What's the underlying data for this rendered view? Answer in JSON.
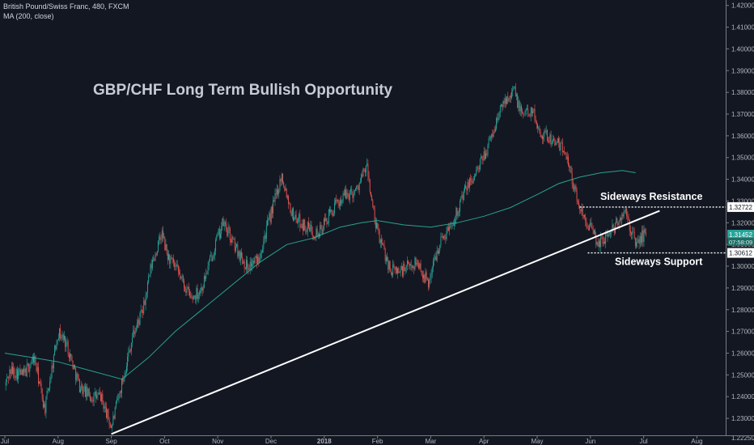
{
  "legend": {
    "symbol_line": "British Pound/Swiss Franc, 480, FXCM",
    "indicator_line": "MA (200, close)"
  },
  "chart_data": {
    "type": "candlestick",
    "title": "GBP/CHF Long Term Bullish Opportunity",
    "y_axis": {
      "range": [
        1.2222,
        1.4225
      ],
      "ticks": [
        "1.23000",
        "1.24000",
        "1.25000",
        "1.26000",
        "1.27000",
        "1.28000",
        "1.29000",
        "1.30000",
        "1.31000",
        "1.32000",
        "1.33000",
        "1.34000",
        "1.35000",
        "1.36000",
        "1.37000",
        "1.38000",
        "1.39000",
        "1.40000",
        "1.41000",
        "1.42000"
      ],
      "bottom_label": "1.22250"
    },
    "x_axis": {
      "labels": [
        "Jul",
        "Aug",
        "Sep",
        "Oct",
        "Nov",
        "Dec",
        "2018",
        "Feb",
        "Mar",
        "Apr",
        "May",
        "Jun",
        "Jul",
        "Aug"
      ],
      "positions": [
        0,
        1,
        2,
        3,
        4,
        5,
        6,
        7,
        8,
        9,
        10,
        11,
        12,
        13
      ]
    },
    "price_path": [
      [
        0.0,
        1.245
      ],
      [
        0.1,
        1.252
      ],
      [
        0.35,
        1.25
      ],
      [
        0.55,
        1.258
      ],
      [
        0.75,
        1.234
      ],
      [
        1.0,
        1.27
      ],
      [
        1.15,
        1.265
      ],
      [
        1.4,
        1.245
      ],
      [
        1.6,
        1.24
      ],
      [
        1.8,
        1.24
      ],
      [
        2.0,
        1.226
      ],
      [
        2.15,
        1.241
      ],
      [
        2.4,
        1.268
      ],
      [
        2.6,
        1.28
      ],
      [
        2.75,
        1.3
      ],
      [
        2.95,
        1.315
      ],
      [
        3.05,
        1.305
      ],
      [
        3.3,
        1.295
      ],
      [
        3.5,
        1.285
      ],
      [
        3.7,
        1.29
      ],
      [
        3.95,
        1.31
      ],
      [
        4.1,
        1.32
      ],
      [
        4.35,
        1.308
      ],
      [
        4.55,
        1.3
      ],
      [
        4.75,
        1.303
      ],
      [
        4.95,
        1.32
      ],
      [
        5.2,
        1.342
      ],
      [
        5.4,
        1.324
      ],
      [
        5.65,
        1.318
      ],
      [
        5.9,
        1.315
      ],
      [
        6.1,
        1.324
      ],
      [
        6.35,
        1.332
      ],
      [
        6.6,
        1.335
      ],
      [
        6.8,
        1.346
      ],
      [
        6.95,
        1.32
      ],
      [
        7.05,
        1.312
      ],
      [
        7.25,
        1.298
      ],
      [
        7.45,
        1.298
      ],
      [
        7.75,
        1.302
      ],
      [
        7.95,
        1.292
      ],
      [
        8.15,
        1.31
      ],
      [
        8.4,
        1.32
      ],
      [
        8.65,
        1.335
      ],
      [
        8.9,
        1.345
      ],
      [
        9.15,
        1.36
      ],
      [
        9.35,
        1.375
      ],
      [
        9.55,
        1.382
      ],
      [
        9.7,
        1.37
      ],
      [
        9.9,
        1.372
      ],
      [
        10.05,
        1.362
      ],
      [
        10.3,
        1.358
      ],
      [
        10.55,
        1.352
      ],
      [
        10.75,
        1.33
      ],
      [
        10.95,
        1.32
      ],
      [
        11.15,
        1.31
      ],
      [
        11.45,
        1.318
      ],
      [
        11.65,
        1.325
      ],
      [
        11.85,
        1.31
      ],
      [
        12.05,
        1.316
      ]
    ],
    "series": [
      {
        "name": "MA (200, close)",
        "color": "#2bbba1",
        "points": [
          [
            0.0,
            1.26
          ],
          [
            0.5,
            1.258
          ],
          [
            1.0,
            1.256
          ],
          [
            1.6,
            1.252
          ],
          [
            2.2,
            1.248
          ],
          [
            2.7,
            1.258
          ],
          [
            3.2,
            1.27
          ],
          [
            3.7,
            1.28
          ],
          [
            4.3,
            1.292
          ],
          [
            4.8,
            1.302
          ],
          [
            5.3,
            1.31
          ],
          [
            5.8,
            1.313
          ],
          [
            6.3,
            1.318
          ],
          [
            6.7,
            1.32
          ],
          [
            7.0,
            1.321
          ],
          [
            7.5,
            1.319
          ],
          [
            8.0,
            1.318
          ],
          [
            8.5,
            1.32
          ],
          [
            9.0,
            1.323
          ],
          [
            9.5,
            1.327
          ],
          [
            10.0,
            1.333
          ],
          [
            10.4,
            1.338
          ],
          [
            10.8,
            1.341
          ],
          [
            11.2,
            1.343
          ],
          [
            11.6,
            1.344
          ],
          [
            11.85,
            1.343
          ]
        ]
      }
    ],
    "trendline": {
      "color": "#ffffff",
      "from": [
        2.0,
        1.2228
      ],
      "to": [
        12.3,
        1.3255
      ]
    },
    "levels": [
      {
        "label": "Sideways Resistance",
        "value": 1.32722,
        "value_label": "1.32722",
        "from_x": 10.8,
        "color": "#ffffff"
      },
      {
        "label": "Sideways Support",
        "value": 1.30612,
        "value_label": "1.30612",
        "from_x": 10.95,
        "color": "#ffffff"
      }
    ],
    "current_price": {
      "value": 1.31452,
      "label": "1.31452",
      "color": "#26a69a"
    },
    "countdown": {
      "value": 1.3112,
      "label": "07:58:09"
    },
    "up_color": "#26a69a",
    "down_color": "#ef5350"
  }
}
